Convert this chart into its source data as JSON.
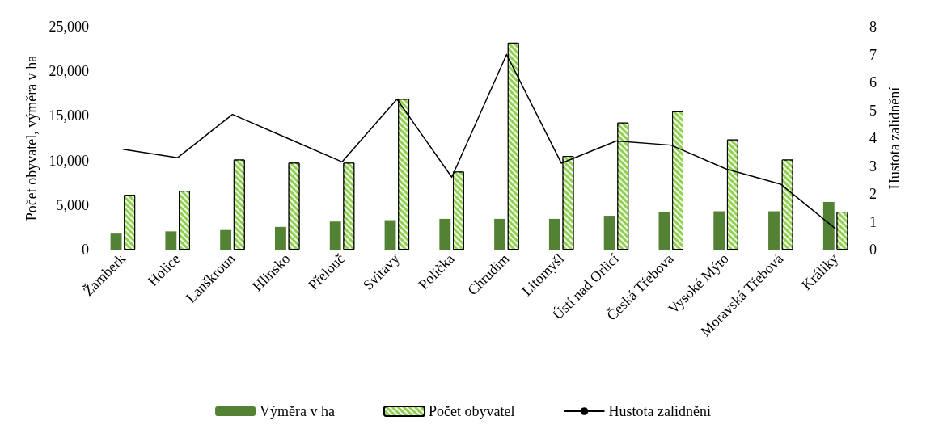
{
  "chart_data": {
    "type": "bar",
    "ylabel": "Počet obyvatel, výměra v ha",
    "y2label": "Hustota zalidnění",
    "categories": [
      "Žamberk",
      "Holice",
      "Lanškroun",
      "Hlinsko",
      "Přelouč",
      "Svitavy",
      "Polička",
      "Chrudim",
      "Litomyšl",
      "Ústí nad Orlicí",
      "Česká Třebová",
      "Vysoké Mýto",
      "Moravská Třebová",
      "Králiky"
    ],
    "series": [
      {
        "name": "Výměra v ha",
        "color": "#548235",
        "values": [
          1800,
          2050,
          2200,
          2550,
          3150,
          3300,
          3450,
          3450,
          3450,
          3800,
          4200,
          4300,
          4300,
          5350
        ]
      },
      {
        "name": "Počet obyvatel",
        "color": "#92d050",
        "values": [
          6150,
          6600,
          10100,
          9750,
          9750,
          16900,
          8750,
          23200,
          10500,
          14250,
          15500,
          12350,
          10100,
          4250
        ]
      },
      {
        "name": "Hustota zalidnění",
        "type": "line",
        "axis": "y2",
        "color": "#000000",
        "values": [
          3.6,
          3.3,
          4.85,
          4.0,
          3.15,
          5.4,
          2.6,
          7.0,
          3.1,
          3.9,
          3.75,
          2.9,
          2.35,
          0.75
        ]
      }
    ],
    "ylim": [
      0,
      25000
    ],
    "yticks": [
      {
        "value": 0,
        "label": "0"
      },
      {
        "value": 5000,
        "label": "5,000"
      },
      {
        "value": 10000,
        "label": "10,000"
      },
      {
        "value": 15000,
        "label": "15,000"
      },
      {
        "value": 20000,
        "label": "20,000"
      },
      {
        "value": 25000,
        "label": "25,000"
      }
    ],
    "y2lim": [
      0,
      8
    ],
    "y2ticks": [
      0,
      1,
      2,
      3,
      4,
      5,
      6,
      7,
      8
    ],
    "grid": false,
    "legend": "bottom",
    "marker": "none",
    "line_style": "solid"
  }
}
